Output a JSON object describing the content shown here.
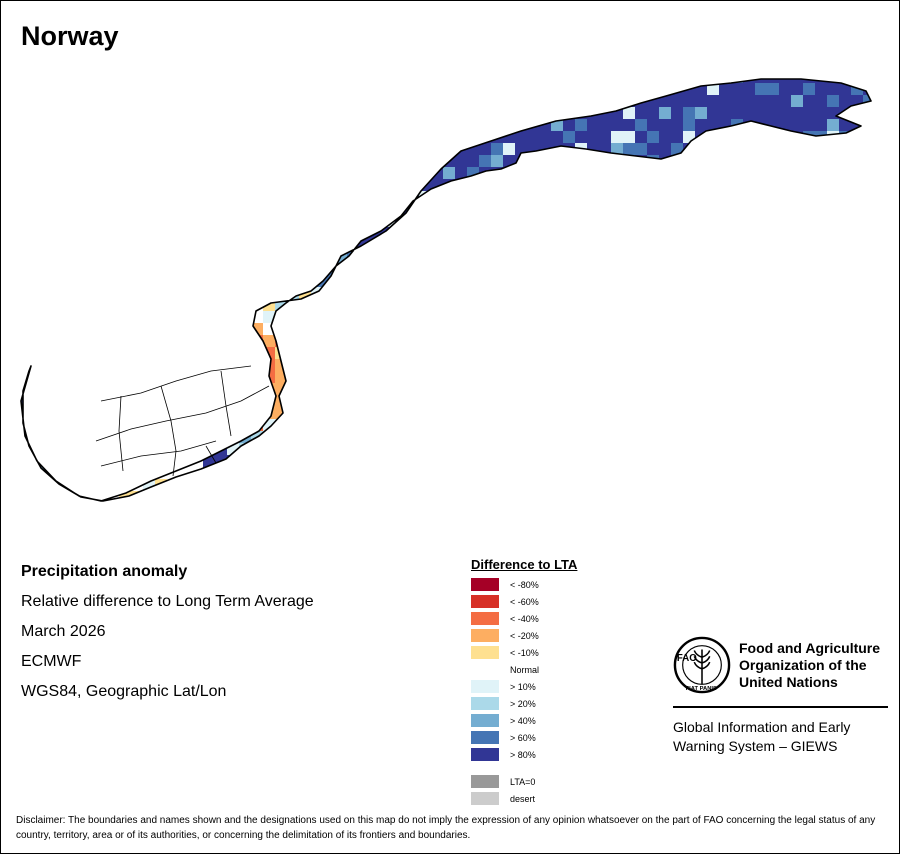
{
  "map": {
    "title": "Norway",
    "subtitle": "Precipitation anomaly",
    "description": "Relative difference to Long Term Average",
    "period": "March 2026",
    "source_model": "ECMWF",
    "projection": "WGS84, Geographic Lat/Lon"
  },
  "legend": {
    "title": "Difference to LTA",
    "items": [
      {
        "label": "< -80%",
        "color": "#a50026"
      },
      {
        "label": "< -60%",
        "color": "#d73027"
      },
      {
        "label": "< -40%",
        "color": "#f46d43"
      },
      {
        "label": "< -20%",
        "color": "#fdae61"
      },
      {
        "label": "< -10%",
        "color": "#fee090"
      },
      {
        "label": "Normal",
        "color": "#ffffff"
      },
      {
        "label": "> 10%",
        "color": "#e0f3f8"
      },
      {
        "label": "> 20%",
        "color": "#abd9e9"
      },
      {
        "label": "> 40%",
        "color": "#74add1"
      },
      {
        "label": "> 60%",
        "color": "#4575b4"
      },
      {
        "label": "> 80%",
        "color": "#313695"
      }
    ],
    "extra": [
      {
        "label": "LTA=0",
        "color": "#999999"
      },
      {
        "label": "desert",
        "color": "#cccccc"
      }
    ]
  },
  "organization": {
    "logo_letters": "FAO",
    "logo_motto": "FIAT PANIS",
    "name": "Food and Agriculture Organization of the United Nations",
    "system": "Global Information and Early Warning System – GIEWS"
  },
  "disclaimer": "Disclaimer: The boundaries and names shown and the designations used on this map do not imply the expression of any opinion whatsoever on the part of FAO concerning the legal status of any country, territory, area or of its authorities, or concerning the delimitation of its frontiers and boundaries."
}
